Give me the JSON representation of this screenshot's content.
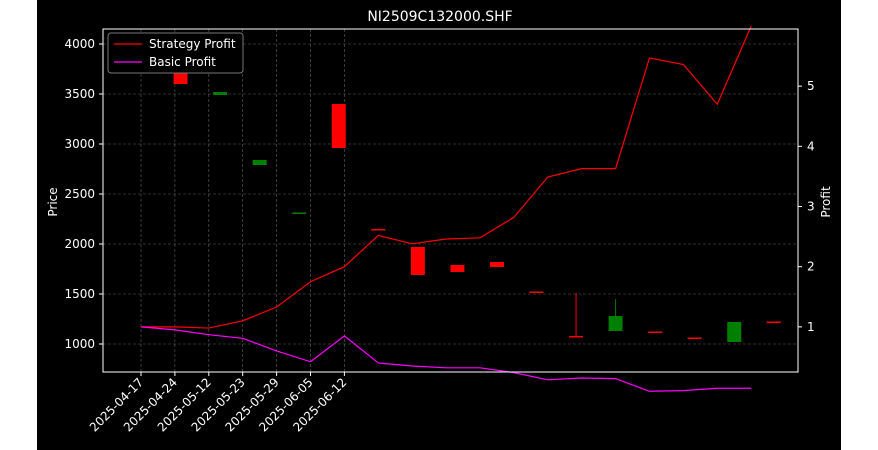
{
  "chart_data": {
    "type": "candlestick+line",
    "title": "NI2509C132000.SHF",
    "ylabel_left": "Price",
    "ylabel_right": "Profit",
    "ylim_left": [
      720,
      4150
    ],
    "ylim_right": [
      0.25,
      5.95
    ],
    "yticks_left": [
      1000,
      1500,
      2000,
      2500,
      3000,
      3500,
      4000
    ],
    "yticks_right": [
      1,
      2,
      3,
      4,
      5
    ],
    "x_tick_labels": [
      "2025-04-17",
      "2025-04-24",
      "2025-05-12",
      "2025-05-23",
      "2025-05-29",
      "2025-06-05",
      "2025-06-12"
    ],
    "x_tick_indices": [
      0,
      3,
      6,
      9,
      12,
      15,
      18
    ],
    "grid": true,
    "legend_position": "top-left",
    "background": "#000000",
    "up_color": "#008000",
    "down_color": "#ff0000",
    "candles": [
      {
        "open": 4080,
        "close": 3860,
        "high": 4080,
        "low": 3860
      },
      {
        "open": 3790,
        "close": 3600,
        "high": 3790,
        "low": 3600
      },
      {
        "open": 3490,
        "close": 3520,
        "high": 3520,
        "low": 3490
      },
      {
        "open": 2790,
        "close": 2840,
        "high": 2840,
        "low": 2790
      },
      {
        "open": 2300,
        "close": 2315,
        "high": 2315,
        "low": 2300
      },
      {
        "open": 3400,
        "close": 2960,
        "high": 3400,
        "low": 2960
      },
      {
        "open": 2150,
        "close": 2140,
        "high": 2150,
        "low": 2140
      },
      {
        "open": 1970,
        "close": 1690,
        "high": 1970,
        "low": 1690
      },
      {
        "open": 1790,
        "close": 1720,
        "high": 1790,
        "low": 1720
      },
      {
        "open": 1820,
        "close": 1770,
        "high": 1820,
        "low": 1770
      },
      {
        "open": 1525,
        "close": 1515,
        "high": 1525,
        "low": 1515
      },
      {
        "open": 1080,
        "close": 1070,
        "high": 1510,
        "low": 1070
      },
      {
        "open": 1130,
        "close": 1280,
        "high": 1450,
        "low": 1130
      },
      {
        "open": 1125,
        "close": 1115,
        "high": 1125,
        "low": 1115
      },
      {
        "open": 1065,
        "close": 1055,
        "high": 1065,
        "low": 1055
      },
      {
        "open": 1020,
        "close": 1220,
        "high": 1220,
        "low": 1020
      },
      {
        "open": 1225,
        "close": 1215,
        "high": 1225,
        "low": 1215
      }
    ],
    "series": [
      {
        "name": "Strategy Profit",
        "color": "#ff0000",
        "x": [
          0,
          3,
          6,
          9,
          12,
          15,
          18,
          21,
          24,
          27,
          30,
          33,
          36,
          39,
          42,
          45,
          48,
          51,
          54
        ],
        "values": [
          1.0,
          1.0,
          0.98,
          1.1,
          1.33,
          1.75,
          2.0,
          2.52,
          2.38,
          2.46,
          2.48,
          2.82,
          3.49,
          3.63,
          3.63,
          5.47,
          5.36,
          4.7,
          6.0
        ]
      },
      {
        "name": "Basic Profit",
        "color": "#ff00ff",
        "x": [
          0,
          3,
          6,
          9,
          12,
          15,
          18,
          21,
          24,
          27,
          30,
          33,
          36,
          39,
          42,
          45,
          48,
          51,
          54
        ],
        "values": [
          1.0,
          0.95,
          0.87,
          0.81,
          0.6,
          0.42,
          0.85,
          0.4,
          0.35,
          0.32,
          0.32,
          0.24,
          0.12,
          0.15,
          0.14,
          -0.07,
          -0.06,
          -0.02,
          -0.02
        ]
      }
    ]
  }
}
